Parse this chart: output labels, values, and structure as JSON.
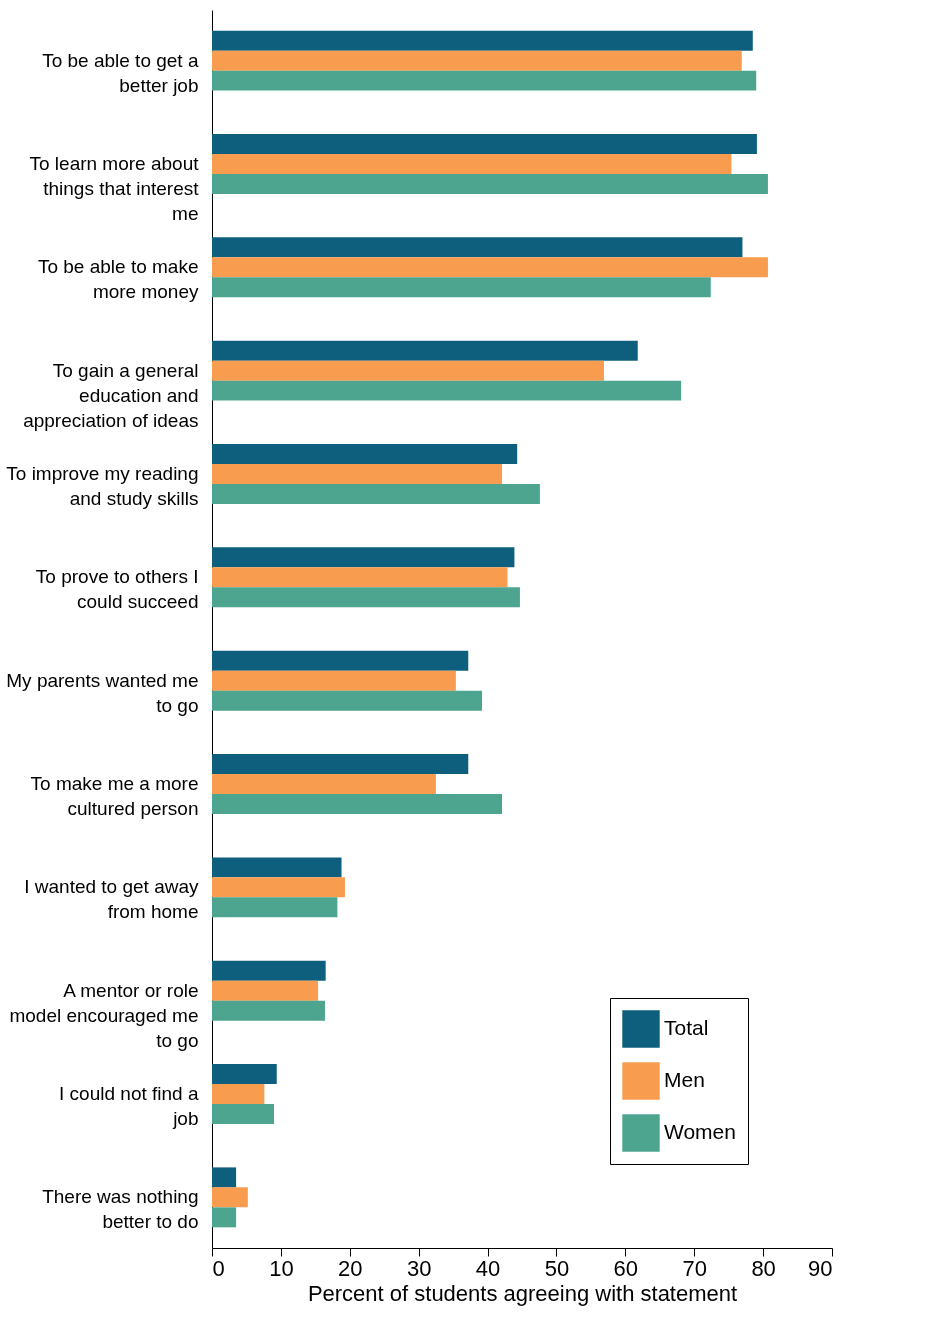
{
  "chart_data": {
    "type": "bar",
    "orientation": "horizontal",
    "xlabel": "Percent of students agreeing with statement",
    "categories": [
      "To be able to get a better job",
      "To learn more about things that interest me",
      "To be able to make more money",
      "To gain a general education and appreciation of ideas",
      "To improve my reading and study skills",
      "To prove to others I could succeed",
      "My parents wanted me to go",
      "To make me a more cultured person",
      "I wanted to get away from home",
      "A mentor or role model encouraged me to go",
      "I could not find a job",
      "There was nothing better to do"
    ],
    "series": [
      {
        "name": "Total",
        "color": "#0e5f7d",
        "values": [
          78.5,
          79.1,
          77.0,
          61.8,
          44.3,
          43.9,
          37.2,
          37.2,
          18.8,
          16.5,
          9.4,
          3.5
        ]
      },
      {
        "name": "Men",
        "color": "#f89d4f",
        "values": [
          76.9,
          75.4,
          80.7,
          56.9,
          42.1,
          42.9,
          35.4,
          32.5,
          19.3,
          15.4,
          7.6,
          5.2
        ]
      },
      {
        "name": "Women",
        "color": "#4ea58f",
        "values": [
          79.0,
          80.7,
          72.4,
          68.1,
          47.6,
          44.7,
          39.2,
          42.1,
          18.2,
          16.4,
          9.0,
          3.5
        ]
      }
    ],
    "xlim": [
      0,
      90
    ],
    "xticks": [
      0,
      10,
      20,
      30,
      40,
      50,
      60,
      70,
      80,
      90
    ],
    "grid": false,
    "legend": "bottom right"
  }
}
